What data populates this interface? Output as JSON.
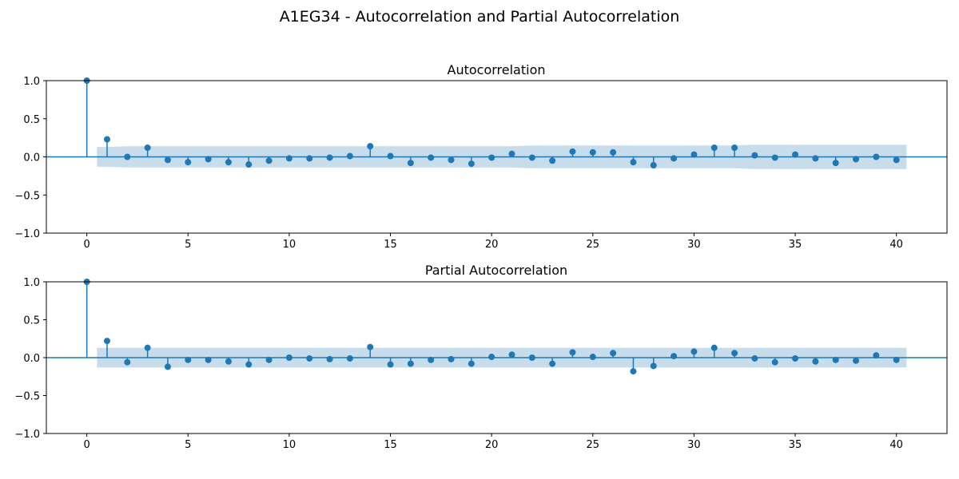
{
  "figure": {
    "suptitle": "A1EG34 - Autocorrelation and Partial Autocorrelation",
    "colors": {
      "stem": "#1f77b4",
      "band": "#1f77b4",
      "axes": "#000000",
      "background": "#ffffff"
    }
  },
  "chart_data": [
    {
      "type": "stem",
      "title": "Autocorrelation",
      "xlabel": "",
      "ylabel": "",
      "xlim": [
        -2,
        42.5
      ],
      "ylim": [
        -1,
        1
      ],
      "xticks": [
        0,
        5,
        10,
        15,
        20,
        25,
        30,
        35,
        40
      ],
      "xtick_labels": [
        "0",
        "5",
        "10",
        "15",
        "20",
        "25",
        "30",
        "35",
        "40"
      ],
      "yticks": [
        -1.0,
        -0.5,
        0.0,
        0.5,
        1.0
      ],
      "ytick_labels": [
        "−1.0",
        "−0.5",
        "0.0",
        "0.5",
        "1.0"
      ],
      "lags": [
        0,
        1,
        2,
        3,
        4,
        5,
        6,
        7,
        8,
        9,
        10,
        11,
        12,
        13,
        14,
        15,
        16,
        17,
        18,
        19,
        20,
        21,
        22,
        23,
        24,
        25,
        26,
        27,
        28,
        29,
        30,
        31,
        32,
        33,
        34,
        35,
        36,
        37,
        38,
        39,
        40
      ],
      "values": [
        1.0,
        0.23,
        0.0,
        0.12,
        -0.04,
        -0.07,
        -0.03,
        -0.07,
        -0.1,
        -0.05,
        -0.02,
        -0.02,
        -0.01,
        0.01,
        0.14,
        0.01,
        -0.08,
        -0.01,
        -0.04,
        -0.09,
        -0.01,
        0.04,
        -0.01,
        -0.05,
        0.07,
        0.06,
        0.06,
        -0.07,
        -0.11,
        -0.02,
        0.03,
        0.12,
        0.12,
        0.02,
        -0.01,
        0.03,
        -0.02,
        -0.08,
        -0.03,
        0.0,
        -0.04
      ],
      "confidence_band": {
        "lags": [
          0.5,
          1,
          2,
          3,
          4,
          5,
          6,
          7,
          8,
          9,
          10,
          11,
          12,
          13,
          14,
          15,
          16,
          17,
          18,
          19,
          20,
          21,
          22,
          23,
          24,
          25,
          26,
          27,
          28,
          29,
          30,
          31,
          32,
          33,
          34,
          35,
          36,
          37,
          38,
          39,
          40,
          40.5
        ],
        "upper": [
          0.13,
          0.13,
          0.14,
          0.14,
          0.14,
          0.14,
          0.14,
          0.14,
          0.14,
          0.14,
          0.14,
          0.14,
          0.14,
          0.14,
          0.14,
          0.14,
          0.14,
          0.14,
          0.14,
          0.14,
          0.14,
          0.14,
          0.15,
          0.15,
          0.15,
          0.15,
          0.15,
          0.15,
          0.15,
          0.15,
          0.15,
          0.15,
          0.15,
          0.16,
          0.16,
          0.16,
          0.16,
          0.16,
          0.16,
          0.16,
          0.16,
          0.16
        ]
      }
    },
    {
      "type": "stem",
      "title": "Partial Autocorrelation",
      "xlabel": "",
      "ylabel": "",
      "xlim": [
        -2,
        42.5
      ],
      "ylim": [
        -1,
        1
      ],
      "xticks": [
        0,
        5,
        10,
        15,
        20,
        25,
        30,
        35,
        40
      ],
      "xtick_labels": [
        "0",
        "5",
        "10",
        "15",
        "20",
        "25",
        "30",
        "35",
        "40"
      ],
      "yticks": [
        -1.0,
        -0.5,
        0.0,
        0.5,
        1.0
      ],
      "ytick_labels": [
        "−1.0",
        "−0.5",
        "0.0",
        "0.5",
        "1.0"
      ],
      "lags": [
        0,
        1,
        2,
        3,
        4,
        5,
        6,
        7,
        8,
        9,
        10,
        11,
        12,
        13,
        14,
        15,
        16,
        17,
        18,
        19,
        20,
        21,
        22,
        23,
        24,
        25,
        26,
        27,
        28,
        29,
        30,
        31,
        32,
        33,
        34,
        35,
        36,
        37,
        38,
        39,
        40
      ],
      "values": [
        1.0,
        0.22,
        -0.06,
        0.13,
        -0.12,
        -0.03,
        -0.03,
        -0.05,
        -0.09,
        -0.03,
        0.0,
        -0.01,
        -0.02,
        -0.01,
        0.14,
        -0.09,
        -0.08,
        -0.03,
        -0.02,
        -0.08,
        0.01,
        0.04,
        0.0,
        -0.08,
        0.07,
        0.01,
        0.06,
        -0.18,
        -0.11,
        0.02,
        0.08,
        0.13,
        0.06,
        -0.01,
        -0.06,
        -0.01,
        -0.05,
        -0.03,
        -0.04,
        0.03,
        -0.03
      ],
      "confidence_band": {
        "lags": [
          0.5,
          40.5
        ],
        "upper": [
          0.13,
          0.13
        ]
      }
    }
  ]
}
